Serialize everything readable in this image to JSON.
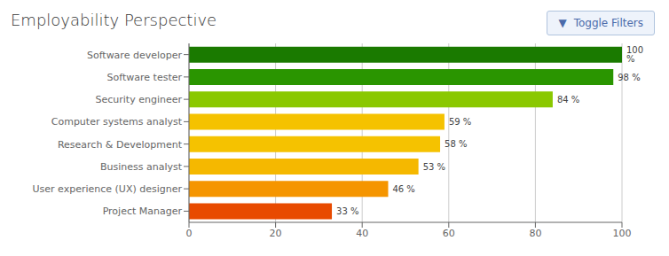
{
  "chart_data": {
    "type": "bar",
    "title": "Employability Perspective",
    "orientation": "horizontal",
    "categories": [
      "Software developer",
      "Software tester",
      "Security engineer",
      "Computer systems analyst",
      "Research & Development",
      "Business analyst",
      "User experience (UX) designer",
      "Project Manager"
    ],
    "values": [
      100,
      98,
      84,
      59,
      58,
      53,
      46,
      33
    ],
    "value_labels": [
      "100 %",
      "98 %",
      "84 %",
      "59 %",
      "58 %",
      "53 %",
      "46 %",
      "33 %"
    ],
    "data_labels": true,
    "colors": [
      "#1a7a00",
      "#2a9500",
      "#8ac800",
      "#f5c200",
      "#f5c200",
      "#f5b800",
      "#f59500",
      "#e84a00"
    ],
    "xlim": [
      0,
      100
    ],
    "xticks": [
      0,
      20,
      40,
      60,
      80,
      100
    ],
    "grid": true,
    "annotations": [
      "▼",
      "Toggle Filters"
    ]
  }
}
